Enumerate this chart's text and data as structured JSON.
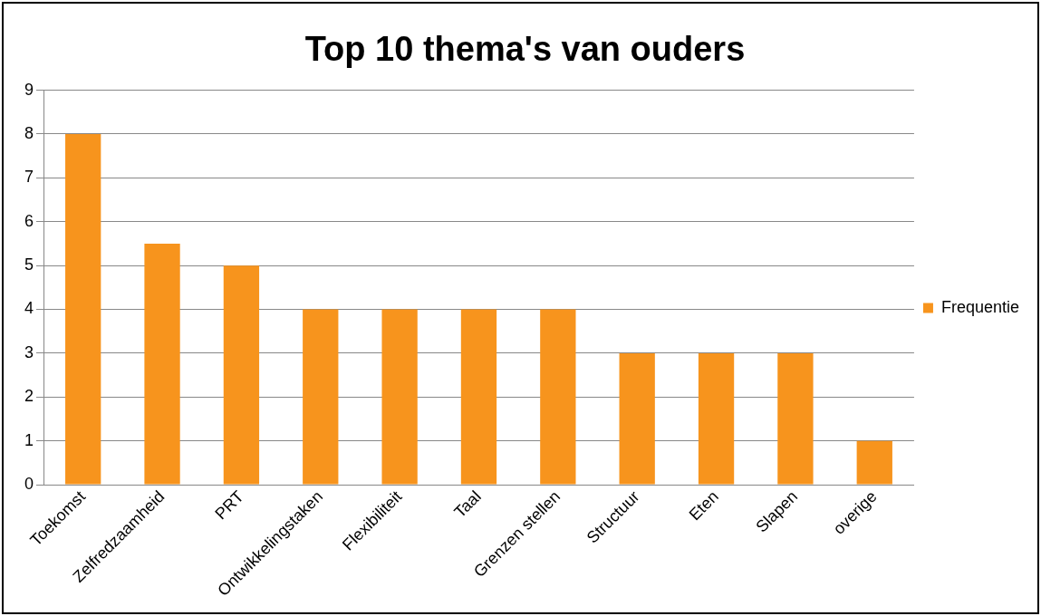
{
  "chart_data": {
    "type": "bar",
    "title": "Top 10 thema's van ouders",
    "categories": [
      "Toekomst",
      "Zelfredzaamheid",
      "PRT",
      "Ontwikkelingstaken",
      "Flexibiliteit",
      "Taal",
      "Grenzen stellen",
      "Structuur",
      "Eten",
      "Slapen",
      "overige"
    ],
    "series": [
      {
        "name": "Frequentie",
        "color": "#f7941d",
        "values": [
          8,
          5.5,
          5,
          4,
          4,
          4,
          4,
          3,
          3,
          3,
          1
        ]
      }
    ],
    "ylim": [
      0,
      9
    ],
    "yticks": [
      0,
      1,
      2,
      3,
      4,
      5,
      6,
      7,
      8,
      9
    ],
    "grid": "y",
    "legend": "right"
  }
}
